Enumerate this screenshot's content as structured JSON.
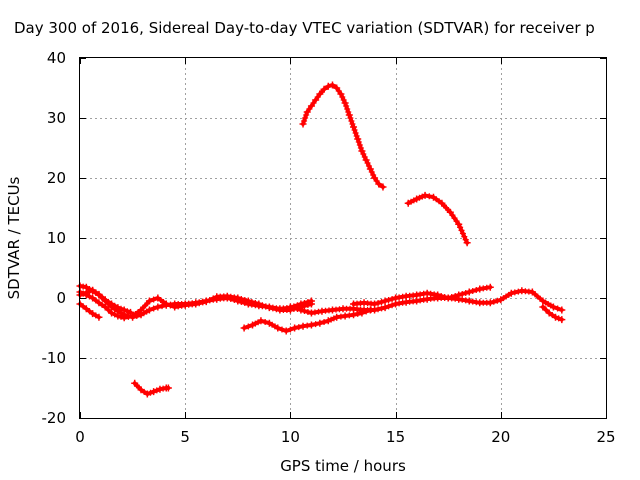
{
  "chart_data": {
    "type": "scatter",
    "title": "Day 300 of 2016, Sidereal Day-to-day VTEC variation (SDTVAR) for receiver p",
    "xlabel": "GPS time / hours",
    "ylabel": "SDTVAR / TECUs",
    "xlim": [
      0,
      25
    ],
    "ylim": [
      -20,
      40
    ],
    "xticks": [
      0,
      5,
      10,
      15,
      20,
      25
    ],
    "yticks": [
      -20,
      -10,
      0,
      10,
      20,
      30,
      40
    ],
    "xtick_labels": [
      "0",
      "5",
      "10",
      "15",
      "20",
      "25"
    ],
    "ytick_labels": [
      "-20",
      "-10",
      "0",
      "10",
      "20",
      "30",
      "40"
    ],
    "grid": true,
    "marker": "+",
    "series_color": "#ff0000",
    "series": [
      {
        "name": "arc-main-0",
        "x": [
          0.0,
          0.3,
          0.6,
          0.9,
          1.2,
          1.5,
          1.8,
          2.1,
          2.5,
          2.9,
          3.3,
          3.7,
          4.1,
          4.5,
          5.0,
          5.5,
          6.0,
          6.5,
          7.0,
          7.5,
          8.0,
          8.5,
          9.0,
          9.5,
          10.0,
          10.5,
          11.0
        ],
        "y": [
          2.0,
          1.8,
          1.2,
          0.5,
          -0.5,
          -1.5,
          -2.2,
          -2.8,
          -3.2,
          -2.8,
          -2.0,
          -1.5,
          -1.2,
          -1.0,
          -1.0,
          -0.8,
          -0.5,
          -0.2,
          0.0,
          -0.5,
          -1.0,
          -1.3,
          -1.5,
          -1.8,
          -1.6,
          -1.0,
          -0.5
        ]
      },
      {
        "name": "arc-main-1",
        "x": [
          0.0,
          0.3,
          0.6,
          0.9,
          1.2,
          1.5,
          1.8,
          2.1,
          2.5,
          2.9,
          3.3,
          3.7,
          4.1,
          4.5,
          5.0,
          5.5,
          6.0,
          6.5,
          7.0,
          7.5,
          8.0,
          8.5,
          9.0,
          9.5,
          10.0,
          10.5,
          11.0
        ],
        "y": [
          1.0,
          0.5,
          0.0,
          -0.8,
          -1.5,
          -2.5,
          -3.0,
          -3.3,
          -3.0,
          -2.0,
          -0.5,
          0.0,
          -1.0,
          -1.5,
          -1.2,
          -1.0,
          -0.6,
          0.2,
          0.3,
          0.0,
          -0.5,
          -1.0,
          -1.6,
          -2.0,
          -2.0,
          -1.5,
          -1.0
        ]
      },
      {
        "name": "arc-start-low",
        "x": [
          0.0,
          0.3,
          0.6,
          0.9
        ],
        "y": [
          -1.0,
          -1.8,
          -2.6,
          -3.2
        ]
      },
      {
        "name": "arc-start-up",
        "x": [
          0.0,
          0.3,
          0.6,
          0.9,
          1.2,
          1.5,
          1.8,
          2.1,
          2.4
        ],
        "y": [
          0.5,
          0.9,
          1.3,
          0.6,
          -0.3,
          -1.0,
          -1.6,
          -2.0,
          -2.4
        ]
      },
      {
        "name": "arc-low-short",
        "x": [
          2.6,
          2.9,
          3.2,
          3.5,
          3.8,
          4.1,
          4.2
        ],
        "y": [
          -14.2,
          -15.3,
          -16.0,
          -15.6,
          -15.2,
          -15.0,
          -15.0
        ]
      },
      {
        "name": "arc-mid-low",
        "x": [
          7.8,
          8.2,
          8.6,
          9.0,
          9.4,
          9.8,
          10.2,
          10.6,
          11.0,
          11.4,
          11.8,
          12.2,
          12.6,
          13.0,
          13.4,
          13.8
        ],
        "y": [
          -5.0,
          -4.5,
          -3.8,
          -4.2,
          -5.0,
          -5.5,
          -5.0,
          -4.7,
          -4.5,
          -4.2,
          -3.8,
          -3.2,
          -3.0,
          -2.8,
          -2.5,
          -2.0
        ]
      },
      {
        "name": "arc-second-half",
        "x": [
          10.0,
          10.5,
          11.0,
          11.5,
          12.0,
          12.5,
          13.0,
          13.5,
          14.0,
          14.5,
          15.0,
          15.5,
          16.0,
          16.5,
          17.0,
          17.5,
          18.0,
          18.5,
          19.0,
          19.5,
          20.0,
          20.5,
          21.0,
          21.5,
          22.0,
          22.5,
          22.9
        ],
        "y": [
          -1.5,
          -2.0,
          -2.5,
          -2.2,
          -2.0,
          -1.8,
          -1.8,
          -2.0,
          -2.0,
          -1.6,
          -1.0,
          -0.7,
          -0.5,
          -0.2,
          0.0,
          0.0,
          -0.2,
          -0.5,
          -0.8,
          -0.8,
          -0.3,
          0.8,
          1.2,
          1.0,
          -0.5,
          -1.5,
          -2.0
        ]
      },
      {
        "name": "arc-upper-bump",
        "x": [
          13.0,
          13.5,
          14.0,
          14.5,
          15.0,
          15.5,
          16.0,
          16.5,
          17.0,
          17.5,
          18.0,
          18.5,
          19.0,
          19.5
        ],
        "y": [
          -1.0,
          -0.8,
          -1.0,
          -0.5,
          0.0,
          0.3,
          0.5,
          0.8,
          0.5,
          0.0,
          0.5,
          1.0,
          1.5,
          1.8
        ]
      },
      {
        "name": "arc-end-tail",
        "x": [
          22.0,
          22.3,
          22.6,
          22.9
        ],
        "y": [
          -1.5,
          -2.5,
          -3.2,
          -3.6
        ]
      },
      {
        "name": "arc-peak-high",
        "x": [
          10.6,
          10.8,
          11.0,
          11.2,
          11.4,
          11.6,
          11.8,
          12.0,
          12.2,
          12.4,
          12.6,
          12.8,
          13.0,
          13.2,
          13.4,
          13.6,
          13.8,
          14.0,
          14.2,
          14.4
        ],
        "y": [
          29.0,
          31.0,
          32.0,
          33.0,
          34.0,
          34.8,
          35.3,
          35.5,
          35.0,
          34.0,
          32.5,
          30.5,
          28.5,
          26.5,
          24.5,
          23.0,
          21.5,
          20.0,
          19.0,
          18.5
        ]
      },
      {
        "name": "arc-peak-second",
        "x": [
          15.6,
          16.0,
          16.4,
          16.8,
          17.2,
          17.6,
          18.0,
          18.4
        ],
        "y": [
          15.8,
          16.5,
          17.1,
          16.8,
          15.8,
          14.3,
          12.3,
          9.2
        ]
      }
    ]
  }
}
